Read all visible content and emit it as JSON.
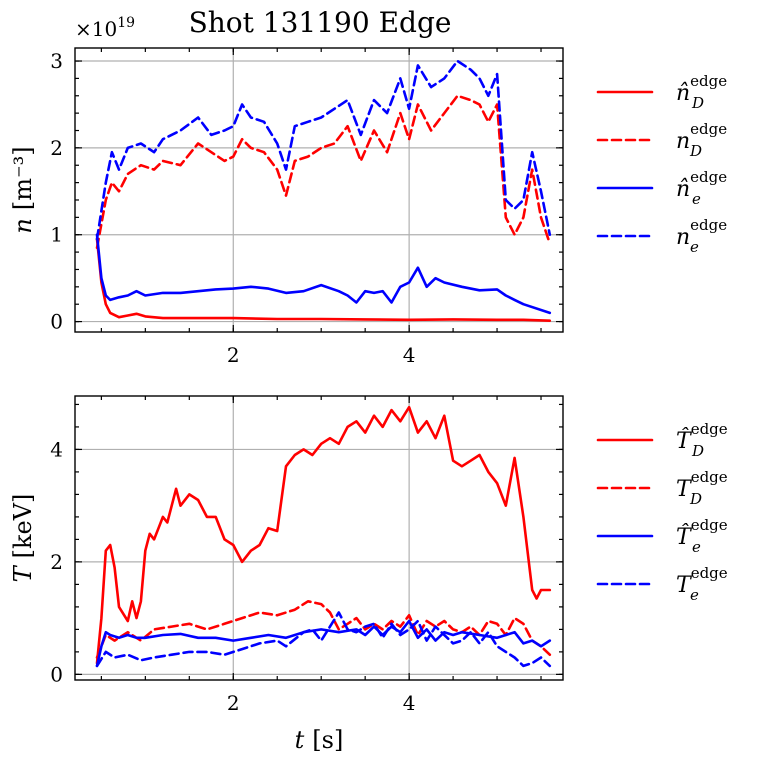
{
  "title": "Shot 131190 Edge",
  "colors": {
    "deuterium": "#ff0000",
    "electron": "#0000ff"
  },
  "chart_data": [
    {
      "type": "line",
      "name": "density",
      "ylabel_var": "n",
      "ylabel_unit": "[m⁻³]",
      "y_multiplier": "×10",
      "y_multiplier_exp": "19",
      "xlim": [
        0.2,
        5.75
      ],
      "ylim": [
        -0.12,
        3.15
      ],
      "xticks": [
        2,
        4
      ],
      "yticks": [
        0,
        1,
        2,
        3
      ],
      "xtick_labels": [
        "2",
        "4"
      ],
      "ytick_labels": [
        "0",
        "1",
        "2",
        "3"
      ],
      "grid": true,
      "legend_position": "right",
      "series": [
        {
          "name": "n̂_D^edge",
          "legend_base": "n̂",
          "legend_sub": "D",
          "legend_sup": "edge",
          "color": "#ff0000",
          "dash": "solid",
          "x": [
            0.45,
            0.5,
            0.55,
            0.6,
            0.7,
            0.8,
            0.9,
            1.0,
            1.2,
            1.5,
            2.0,
            2.5,
            3.0,
            3.5,
            4.0,
            4.5,
            5.0,
            5.3,
            5.6
          ],
          "y": [
            0.95,
            0.45,
            0.2,
            0.1,
            0.05,
            0.07,
            0.09,
            0.06,
            0.04,
            0.04,
            0.04,
            0.03,
            0.03,
            0.025,
            0.02,
            0.025,
            0.02,
            0.02,
            0.01
          ]
        },
        {
          "name": "n_D^edge",
          "legend_base": "n",
          "legend_sub": "D",
          "legend_sup": "edge",
          "color": "#ff0000",
          "dash": "dashed",
          "x": [
            0.45,
            0.55,
            0.62,
            0.7,
            0.8,
            0.95,
            1.1,
            1.2,
            1.4,
            1.6,
            1.75,
            1.9,
            2.0,
            2.1,
            2.2,
            2.35,
            2.5,
            2.6,
            2.7,
            2.85,
            3.0,
            3.15,
            3.3,
            3.45,
            3.6,
            3.75,
            3.9,
            4.0,
            4.1,
            4.25,
            4.4,
            4.55,
            4.7,
            4.8,
            4.9,
            5.0,
            5.1,
            5.2,
            5.3,
            5.4,
            5.5,
            5.6
          ],
          "y": [
            0.85,
            1.4,
            1.6,
            1.5,
            1.7,
            1.8,
            1.75,
            1.85,
            1.8,
            2.05,
            1.95,
            1.85,
            1.9,
            2.1,
            2.0,
            1.95,
            1.75,
            1.45,
            1.85,
            1.9,
            2.0,
            2.05,
            2.25,
            1.85,
            2.2,
            1.95,
            2.4,
            2.1,
            2.5,
            2.2,
            2.4,
            2.6,
            2.55,
            2.5,
            2.3,
            2.5,
            1.2,
            1.0,
            1.2,
            1.75,
            1.2,
            0.9
          ]
        },
        {
          "name": "n̂_e^edge",
          "legend_base": "n̂",
          "legend_sub": "e",
          "legend_sup": "edge",
          "color": "#0000ff",
          "dash": "solid",
          "x": [
            0.45,
            0.5,
            0.55,
            0.6,
            0.7,
            0.8,
            0.9,
            1.0,
            1.2,
            1.4,
            1.6,
            1.8,
            2.0,
            2.2,
            2.4,
            2.6,
            2.8,
            3.0,
            3.2,
            3.3,
            3.4,
            3.5,
            3.6,
            3.7,
            3.8,
            3.9,
            4.0,
            4.1,
            4.2,
            4.3,
            4.4,
            4.6,
            4.8,
            5.0,
            5.1,
            5.2,
            5.3,
            5.6
          ],
          "y": [
            1.0,
            0.5,
            0.3,
            0.25,
            0.28,
            0.3,
            0.35,
            0.3,
            0.33,
            0.33,
            0.35,
            0.37,
            0.38,
            0.4,
            0.38,
            0.33,
            0.35,
            0.42,
            0.35,
            0.3,
            0.22,
            0.35,
            0.33,
            0.35,
            0.22,
            0.4,
            0.45,
            0.62,
            0.4,
            0.5,
            0.45,
            0.4,
            0.36,
            0.37,
            0.3,
            0.25,
            0.2,
            0.1
          ]
        },
        {
          "name": "n_e^edge",
          "legend_base": "n",
          "legend_sub": "e",
          "legend_sup": "edge",
          "color": "#0000ff",
          "dash": "dashed",
          "x": [
            0.45,
            0.55,
            0.62,
            0.7,
            0.8,
            0.95,
            1.1,
            1.2,
            1.4,
            1.6,
            1.75,
            1.9,
            2.0,
            2.1,
            2.2,
            2.35,
            2.5,
            2.6,
            2.7,
            2.85,
            3.0,
            3.15,
            3.3,
            3.45,
            3.6,
            3.75,
            3.9,
            4.0,
            4.1,
            4.25,
            4.4,
            4.55,
            4.7,
            4.8,
            4.9,
            5.0,
            5.1,
            5.2,
            5.3,
            5.4,
            5.5,
            5.6
          ],
          "y": [
            0.95,
            1.6,
            1.95,
            1.75,
            2.0,
            2.05,
            1.95,
            2.1,
            2.2,
            2.35,
            2.15,
            2.2,
            2.25,
            2.5,
            2.35,
            2.3,
            2.05,
            1.75,
            2.25,
            2.3,
            2.35,
            2.45,
            2.55,
            2.15,
            2.55,
            2.4,
            2.8,
            2.45,
            2.95,
            2.7,
            2.8,
            3.0,
            2.9,
            2.8,
            2.6,
            2.85,
            1.4,
            1.3,
            1.4,
            1.95,
            1.5,
            1.0
          ]
        }
      ]
    },
    {
      "type": "line",
      "name": "temperature",
      "ylabel_var": "T",
      "ylabel_unit": "[keV]",
      "xlabel_var": "t",
      "xlabel_unit": "[s]",
      "xlim": [
        0.2,
        5.75
      ],
      "ylim": [
        -0.1,
        4.95
      ],
      "xticks": [
        2,
        4
      ],
      "yticks": [
        0,
        2,
        4
      ],
      "xtick_labels": [
        "2",
        "4"
      ],
      "ytick_labels": [
        "0",
        "2",
        "4"
      ],
      "grid": true,
      "legend_position": "right",
      "series": [
        {
          "name": "T̂_D^edge",
          "legend_base": "T̂",
          "legend_sub": "D",
          "legend_sup": "edge",
          "color": "#ff0000",
          "dash": "solid",
          "x": [
            0.45,
            0.5,
            0.55,
            0.6,
            0.65,
            0.7,
            0.8,
            0.85,
            0.9,
            0.95,
            1.0,
            1.05,
            1.1,
            1.15,
            1.2,
            1.25,
            1.3,
            1.35,
            1.4,
            1.5,
            1.6,
            1.7,
            1.8,
            1.9,
            2.0,
            2.1,
            2.2,
            2.3,
            2.4,
            2.5,
            2.6,
            2.7,
            2.8,
            2.9,
            3.0,
            3.1,
            3.2,
            3.3,
            3.4,
            3.5,
            3.6,
            3.7,
            3.8,
            3.9,
            4.0,
            4.1,
            4.2,
            4.3,
            4.4,
            4.5,
            4.6,
            4.7,
            4.8,
            4.9,
            5.0,
            5.1,
            5.2,
            5.3,
            5.4,
            5.45,
            5.5,
            5.6
          ],
          "y": [
            0.2,
            1.0,
            2.2,
            2.3,
            1.9,
            1.2,
            0.95,
            1.3,
            1.0,
            1.3,
            2.2,
            2.5,
            2.4,
            2.6,
            2.8,
            2.7,
            3.0,
            3.3,
            3.0,
            3.2,
            3.1,
            2.8,
            2.8,
            2.4,
            2.3,
            2.0,
            2.2,
            2.3,
            2.6,
            2.55,
            3.7,
            3.9,
            4.0,
            3.9,
            4.1,
            4.2,
            4.1,
            4.4,
            4.5,
            4.3,
            4.6,
            4.4,
            4.7,
            4.5,
            4.75,
            4.3,
            4.5,
            4.2,
            4.6,
            3.8,
            3.7,
            3.8,
            3.9,
            3.6,
            3.4,
            3.0,
            3.85,
            2.8,
            1.5,
            1.35,
            1.5,
            1.5
          ]
        },
        {
          "name": "T_D^edge",
          "legend_base": "T",
          "legend_sub": "D",
          "legend_sup": "edge",
          "color": "#ff0000",
          "dash": "dashed",
          "x": [
            0.45,
            0.55,
            0.65,
            0.8,
            0.95,
            1.1,
            1.3,
            1.5,
            1.7,
            1.9,
            2.1,
            2.3,
            2.5,
            2.7,
            2.85,
            3.0,
            3.1,
            3.2,
            3.3,
            3.4,
            3.5,
            3.6,
            3.7,
            3.8,
            3.9,
            4.0,
            4.1,
            4.2,
            4.3,
            4.4,
            4.5,
            4.6,
            4.7,
            4.8,
            4.9,
            5.0,
            5.1,
            5.2,
            5.3,
            5.4,
            5.5,
            5.6
          ],
          "y": [
            0.3,
            0.7,
            0.6,
            0.75,
            0.6,
            0.8,
            0.85,
            0.9,
            0.8,
            0.9,
            1.0,
            1.1,
            1.05,
            1.15,
            1.3,
            1.25,
            1.1,
            0.8,
            0.9,
            1.0,
            0.8,
            0.9,
            0.8,
            0.95,
            0.85,
            1.05,
            0.7,
            0.95,
            0.85,
            0.95,
            0.8,
            0.75,
            0.85,
            0.7,
            0.95,
            0.9,
            0.7,
            1.0,
            0.9,
            0.6,
            0.5,
            0.35
          ]
        },
        {
          "name": "T̂_e^edge",
          "legend_base": "T̂",
          "legend_sub": "e",
          "legend_sup": "edge",
          "color": "#0000ff",
          "dash": "solid",
          "x": [
            0.45,
            0.5,
            0.55,
            0.6,
            0.7,
            0.8,
            0.9,
            1.0,
            1.2,
            1.4,
            1.6,
            1.8,
            2.0,
            2.2,
            2.4,
            2.6,
            2.8,
            3.0,
            3.2,
            3.4,
            3.5,
            3.6,
            3.7,
            3.8,
            3.9,
            4.0,
            4.1,
            4.2,
            4.3,
            4.4,
            4.5,
            4.6,
            4.8,
            5.0,
            5.2,
            5.3,
            5.4,
            5.5,
            5.6
          ],
          "y": [
            0.15,
            0.5,
            0.75,
            0.7,
            0.65,
            0.7,
            0.65,
            0.65,
            0.7,
            0.72,
            0.65,
            0.65,
            0.6,
            0.65,
            0.7,
            0.65,
            0.75,
            0.8,
            0.75,
            0.8,
            0.7,
            0.85,
            0.7,
            0.85,
            0.75,
            0.95,
            0.65,
            0.8,
            0.6,
            0.75,
            0.7,
            0.75,
            0.7,
            0.65,
            0.75,
            0.55,
            0.6,
            0.5,
            0.6
          ]
        },
        {
          "name": "T_e^edge",
          "legend_base": "T",
          "legend_sub": "e",
          "legend_sup": "edge",
          "color": "#0000ff",
          "dash": "dashed",
          "x": [
            0.45,
            0.55,
            0.65,
            0.8,
            0.95,
            1.1,
            1.3,
            1.5,
            1.7,
            1.9,
            2.1,
            2.3,
            2.5,
            2.6,
            2.8,
            2.9,
            3.0,
            3.1,
            3.2,
            3.3,
            3.4,
            3.5,
            3.6,
            3.7,
            3.8,
            3.9,
            4.0,
            4.1,
            4.2,
            4.3,
            4.4,
            4.5,
            4.6,
            4.7,
            4.8,
            4.9,
            5.0,
            5.1,
            5.2,
            5.3,
            5.4,
            5.5,
            5.6
          ],
          "y": [
            0.15,
            0.4,
            0.3,
            0.35,
            0.25,
            0.3,
            0.35,
            0.4,
            0.4,
            0.35,
            0.45,
            0.55,
            0.6,
            0.5,
            0.75,
            0.8,
            0.6,
            0.85,
            1.1,
            0.8,
            0.75,
            0.85,
            0.9,
            0.65,
            0.9,
            0.7,
            0.8,
            0.95,
            0.6,
            0.85,
            0.7,
            0.55,
            0.6,
            0.75,
            0.55,
            0.75,
            0.5,
            0.4,
            0.3,
            0.15,
            0.2,
            0.3,
            0.15
          ]
        }
      ]
    }
  ]
}
